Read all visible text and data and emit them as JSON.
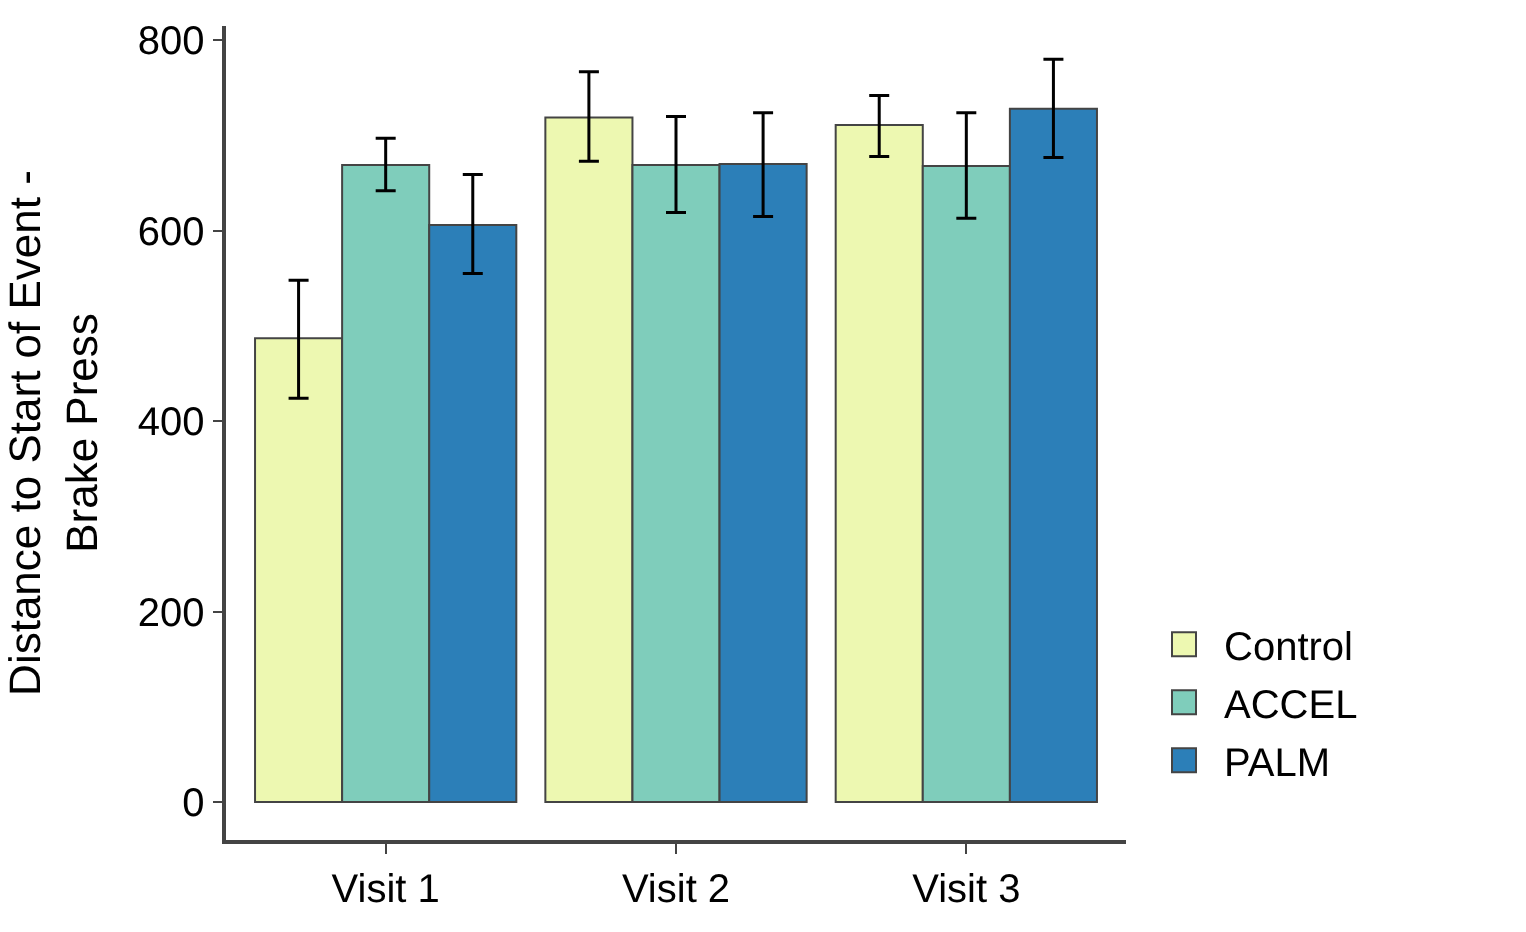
{
  "chart_data": {
    "type": "bar",
    "ylabel": "Distance to Start of Event -\nBrake Press",
    "categories": [
      "Visit 1",
      "Visit 2",
      "Visit 3"
    ],
    "series": [
      {
        "name": "Control",
        "color": "#edf8b1",
        "values": [
          487,
          719,
          711
        ],
        "errors": [
          [
            424,
            548
          ],
          [
            673,
            767
          ],
          [
            678,
            742
          ]
        ]
      },
      {
        "name": "ACCEL",
        "color": "#7fcdbb",
        "values": [
          669,
          669,
          668
        ],
        "errors": [
          [
            642,
            697
          ],
          [
            619,
            720
          ],
          [
            613,
            724
          ]
        ]
      },
      {
        "name": "PALM",
        "color": "#2c7fb8",
        "values": [
          606,
          670,
          728
        ],
        "errors": [
          [
            555,
            659
          ],
          [
            615,
            724
          ],
          [
            677,
            780
          ]
        ]
      }
    ],
    "ylim": [
      -40,
      815
    ],
    "yticks": [
      0,
      200,
      400,
      600,
      800
    ],
    "legend": "bottom right"
  }
}
